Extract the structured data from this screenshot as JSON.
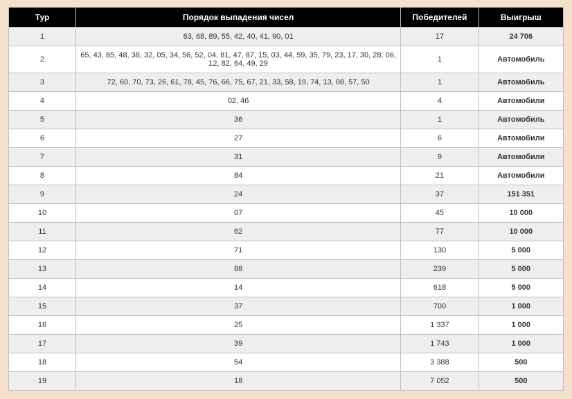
{
  "headers": {
    "tur": "Тур",
    "numbers": "Порядок выпадения чисел",
    "winners": "Победителей",
    "prize": "Выигрыш"
  },
  "rows": [
    {
      "tur": "1",
      "numbers": "63, 68, 89, 55, 42, 40, 41, 90, 01",
      "winners": "17",
      "prize": "24 706"
    },
    {
      "tur": "2",
      "numbers": "65, 43, 85, 48, 38, 32, 05, 34, 56, 52, 04, 81, 47, 87, 15, 03, 44, 59, 35, 79, 23, 17, 30, 28, 06, 12, 82, 64, 49, 29",
      "winners": "1",
      "prize": "Автомобиль"
    },
    {
      "tur": "3",
      "numbers": "72, 60, 70, 73, 26, 61, 78, 45, 76, 66, 75, 67, 21, 33, 58, 19, 74, 13, 08, 57, 50",
      "winners": "1",
      "prize": "Автомобиль"
    },
    {
      "tur": "4",
      "numbers": "02, 46",
      "winners": "4",
      "prize": "Автомобили"
    },
    {
      "tur": "5",
      "numbers": "36",
      "winners": "1",
      "prize": "Автомобиль"
    },
    {
      "tur": "6",
      "numbers": "27",
      "winners": "6",
      "prize": "Автомобили"
    },
    {
      "tur": "7",
      "numbers": "31",
      "winners": "9",
      "prize": "Автомобили"
    },
    {
      "tur": "8",
      "numbers": "84",
      "winners": "21",
      "prize": "Автомобили"
    },
    {
      "tur": "9",
      "numbers": "24",
      "winners": "37",
      "prize": "151 351"
    },
    {
      "tur": "10",
      "numbers": "07",
      "winners": "45",
      "prize": "10 000"
    },
    {
      "tur": "11",
      "numbers": "62",
      "winners": "77",
      "prize": "10 000"
    },
    {
      "tur": "12",
      "numbers": "71",
      "winners": "130",
      "prize": "5 000"
    },
    {
      "tur": "13",
      "numbers": "88",
      "winners": "239",
      "prize": "5 000"
    },
    {
      "tur": "14",
      "numbers": "14",
      "winners": "618",
      "prize": "5 000"
    },
    {
      "tur": "15",
      "numbers": "37",
      "winners": "700",
      "prize": "1 000"
    },
    {
      "tur": "16",
      "numbers": "25",
      "winners": "1 337",
      "prize": "1 000"
    },
    {
      "tur": "17",
      "numbers": "39",
      "winners": "1 743",
      "prize": "1 000"
    },
    {
      "tur": "18",
      "numbers": "54",
      "winners": "3 388",
      "prize": "500"
    },
    {
      "tur": "19",
      "numbers": "18",
      "winners": "7 052",
      "prize": "500"
    }
  ]
}
